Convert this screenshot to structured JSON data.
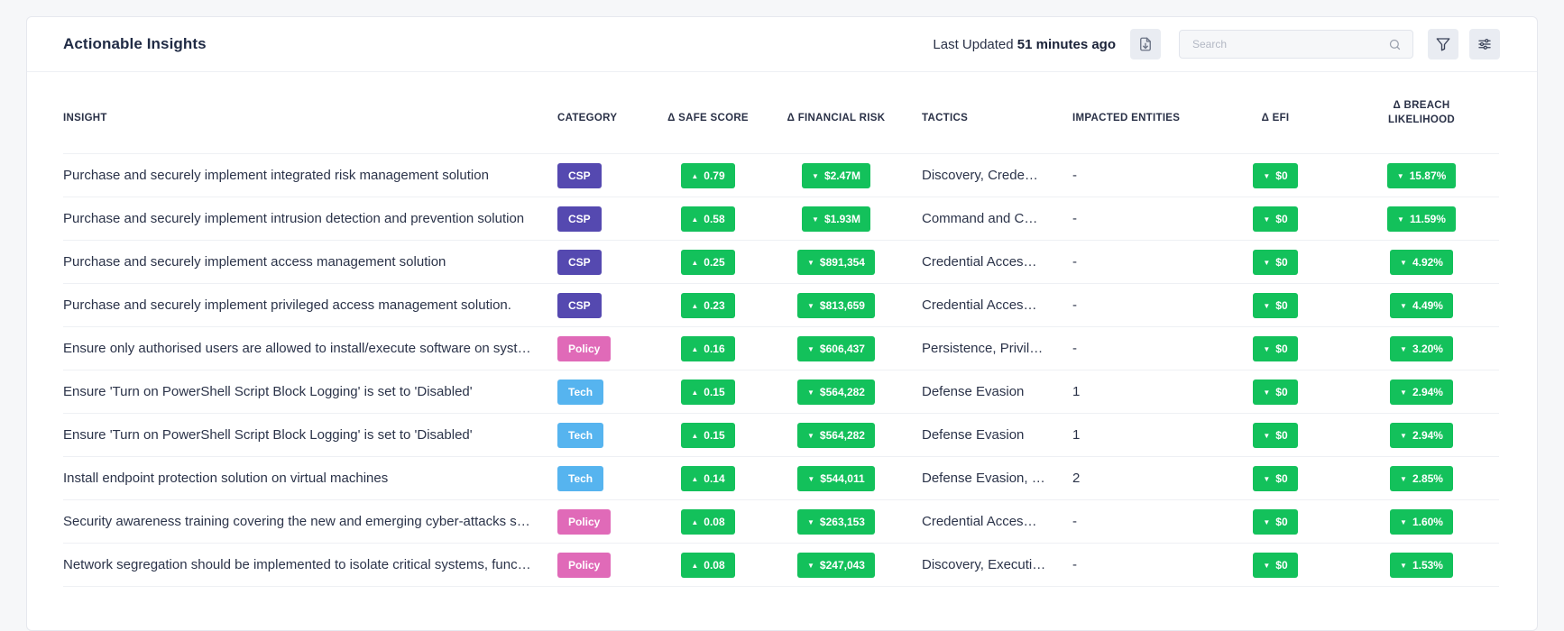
{
  "header": {
    "title": "Actionable Insights",
    "last_updated_prefix": "Last Updated",
    "last_updated_value": "51 minutes ago",
    "search_placeholder": "Search"
  },
  "columns": {
    "insight": "INSIGHT",
    "category": "CATEGORY",
    "safe_score": "Δ SAFE SCORE",
    "financial_risk": "Δ FINANCIAL RISK",
    "tactics": "TACTICS",
    "impacted": "IMPACTED ENTITIES",
    "efi": "Δ EFI",
    "breach_line1": "Δ BREACH",
    "breach_line2": "LIKELIHOOD"
  },
  "category_colors": {
    "CSP": "#5549b0",
    "Policy": "#e06ab8",
    "Tech": "#56b4ef"
  },
  "status_color": "#13c15b",
  "arrows": {
    "up": "▲",
    "down": "▼"
  },
  "rows": [
    {
      "insight": "Purchase and securely implement integrated risk management solution",
      "category": "CSP",
      "safe_score": "0.79",
      "financial_risk": "$2.47M",
      "tactics": "Discovery, Crede…",
      "impacted": "-",
      "efi": "$0",
      "breach": "15.87%"
    },
    {
      "insight": "Purchase and securely implement intrusion detection and prevention solution",
      "category": "CSP",
      "safe_score": "0.58",
      "financial_risk": "$1.93M",
      "tactics": "Command and C…",
      "impacted": "-",
      "efi": "$0",
      "breach": "11.59%"
    },
    {
      "insight": "Purchase and securely implement access management solution",
      "category": "CSP",
      "safe_score": "0.25",
      "financial_risk": "$891,354",
      "tactics": "Credential Acces…",
      "impacted": "-",
      "efi": "$0",
      "breach": "4.92%"
    },
    {
      "insight": "Purchase and securely implement privileged access management solution.",
      "category": "CSP",
      "safe_score": "0.23",
      "financial_risk": "$813,659",
      "tactics": "Credential Acces…",
      "impacted": "-",
      "efi": "$0",
      "breach": "4.49%"
    },
    {
      "insight": "Ensure only authorised users are allowed to install/execute software on syste…",
      "category": "Policy",
      "safe_score": "0.16",
      "financial_risk": "$606,437",
      "tactics": "Persistence, Privil…",
      "impacted": "-",
      "efi": "$0",
      "breach": "3.20%"
    },
    {
      "insight": "Ensure 'Turn on PowerShell Script Block Logging' is set to 'Disabled'",
      "category": "Tech",
      "safe_score": "0.15",
      "financial_risk": "$564,282",
      "tactics": "Defense Evasion",
      "impacted": "1",
      "efi": "$0",
      "breach": "2.94%"
    },
    {
      "insight": "Ensure 'Turn on PowerShell Script Block Logging' is set to 'Disabled'",
      "category": "Tech",
      "safe_score": "0.15",
      "financial_risk": "$564,282",
      "tactics": "Defense Evasion",
      "impacted": "1",
      "efi": "$0",
      "breach": "2.94%"
    },
    {
      "insight": "Install endpoint protection solution on virtual machines",
      "category": "Tech",
      "safe_score": "0.14",
      "financial_risk": "$544,011",
      "tactics": "Defense Evasion, …",
      "impacted": "2",
      "efi": "$0",
      "breach": "2.85%"
    },
    {
      "insight": "Security awareness training covering the new and emerging cyber-attacks s…",
      "category": "Policy",
      "safe_score": "0.08",
      "financial_risk": "$263,153",
      "tactics": "Credential Acces…",
      "impacted": "-",
      "efi": "$0",
      "breach": "1.60%"
    },
    {
      "insight": "Network segregation should be implemented to isolate critical systems, functi…",
      "category": "Policy",
      "safe_score": "0.08",
      "financial_risk": "$247,043",
      "tactics": "Discovery, Executi…",
      "impacted": "-",
      "efi": "$0",
      "breach": "1.53%"
    }
  ]
}
